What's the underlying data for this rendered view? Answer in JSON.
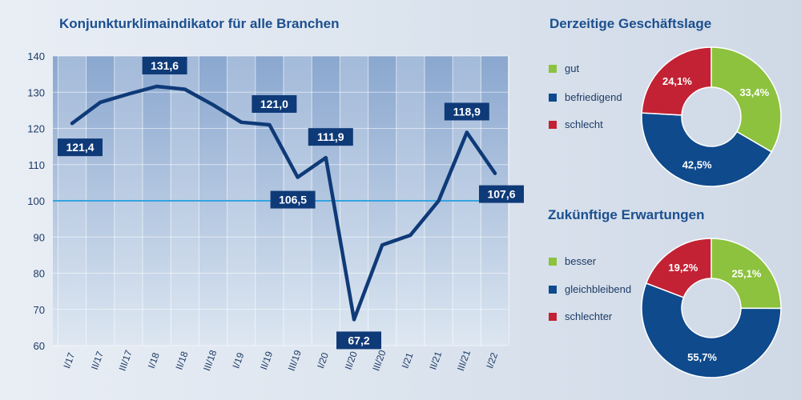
{
  "line_chart": {
    "title": "Konjunkturklimaindikator für alle Branchen"
  },
  "pie_current": {
    "title": "Derzeitige Geschäftslage",
    "legend": [
      "gut",
      "befriedigend",
      "schlecht"
    ]
  },
  "pie_future": {
    "title": "Zukünftige Erwartungen",
    "legend": [
      "besser",
      "gleichbleibend",
      "schlechter"
    ]
  },
  "colors": {
    "title_blue": "#1c4f8f",
    "line_blue": "#0f3a78",
    "label_box": "#0f3a78",
    "green": "#8cc23e",
    "navy": "#0e4a8c",
    "red": "#c32234",
    "reference_line": "#35a4e0"
  },
  "chart_data": [
    {
      "type": "line",
      "title": "Konjunkturklimaindikator für alle Branchen",
      "xlabel": "",
      "ylabel": "",
      "ylim": [
        60,
        140
      ],
      "yticks": [
        60,
        70,
        80,
        90,
        100,
        110,
        120,
        130,
        140
      ],
      "reference_value": 100,
      "grid": true,
      "categories": [
        "I/17",
        "II/17",
        "III/17",
        "I/18",
        "II/18",
        "III/18",
        "I/19",
        "II/19",
        "III/19",
        "I/20",
        "II/20",
        "III/20",
        "I/21",
        "II/21",
        "III/21",
        "I/22"
      ],
      "series": [
        {
          "values": [
            121.4,
            127.2,
            129.5,
            131.6,
            130.8,
            126.5,
            121.7,
            121.0,
            106.5,
            111.9,
            67.2,
            87.8,
            90.5,
            100.0,
            118.9,
            107.6
          ]
        }
      ],
      "data_labels": [
        {
          "index": 0,
          "text": "121,4"
        },
        {
          "index": 3,
          "text": "131,6"
        },
        {
          "index": 7,
          "text": "121,0"
        },
        {
          "index": 8,
          "text": "106,5"
        },
        {
          "index": 9,
          "text": "111,9"
        },
        {
          "index": 10,
          "text": "67,2"
        },
        {
          "index": 14,
          "text": "118,9"
        },
        {
          "index": 15,
          "text": "107,6"
        }
      ]
    },
    {
      "type": "pie",
      "title": "Derzeitige Geschäftslage",
      "categories": [
        "gut",
        "befriedigend",
        "schlecht"
      ],
      "values": [
        33.4,
        42.5,
        24.1
      ],
      "labels": [
        "33,4%",
        "42,5%",
        "24,1%"
      ]
    },
    {
      "type": "pie",
      "title": "Zukünftige Erwartungen",
      "categories": [
        "besser",
        "gleichbleibend",
        "schlechter"
      ],
      "values": [
        25.1,
        55.7,
        19.2
      ],
      "labels": [
        "25,1%",
        "55,7%",
        "19,2%"
      ]
    }
  ]
}
